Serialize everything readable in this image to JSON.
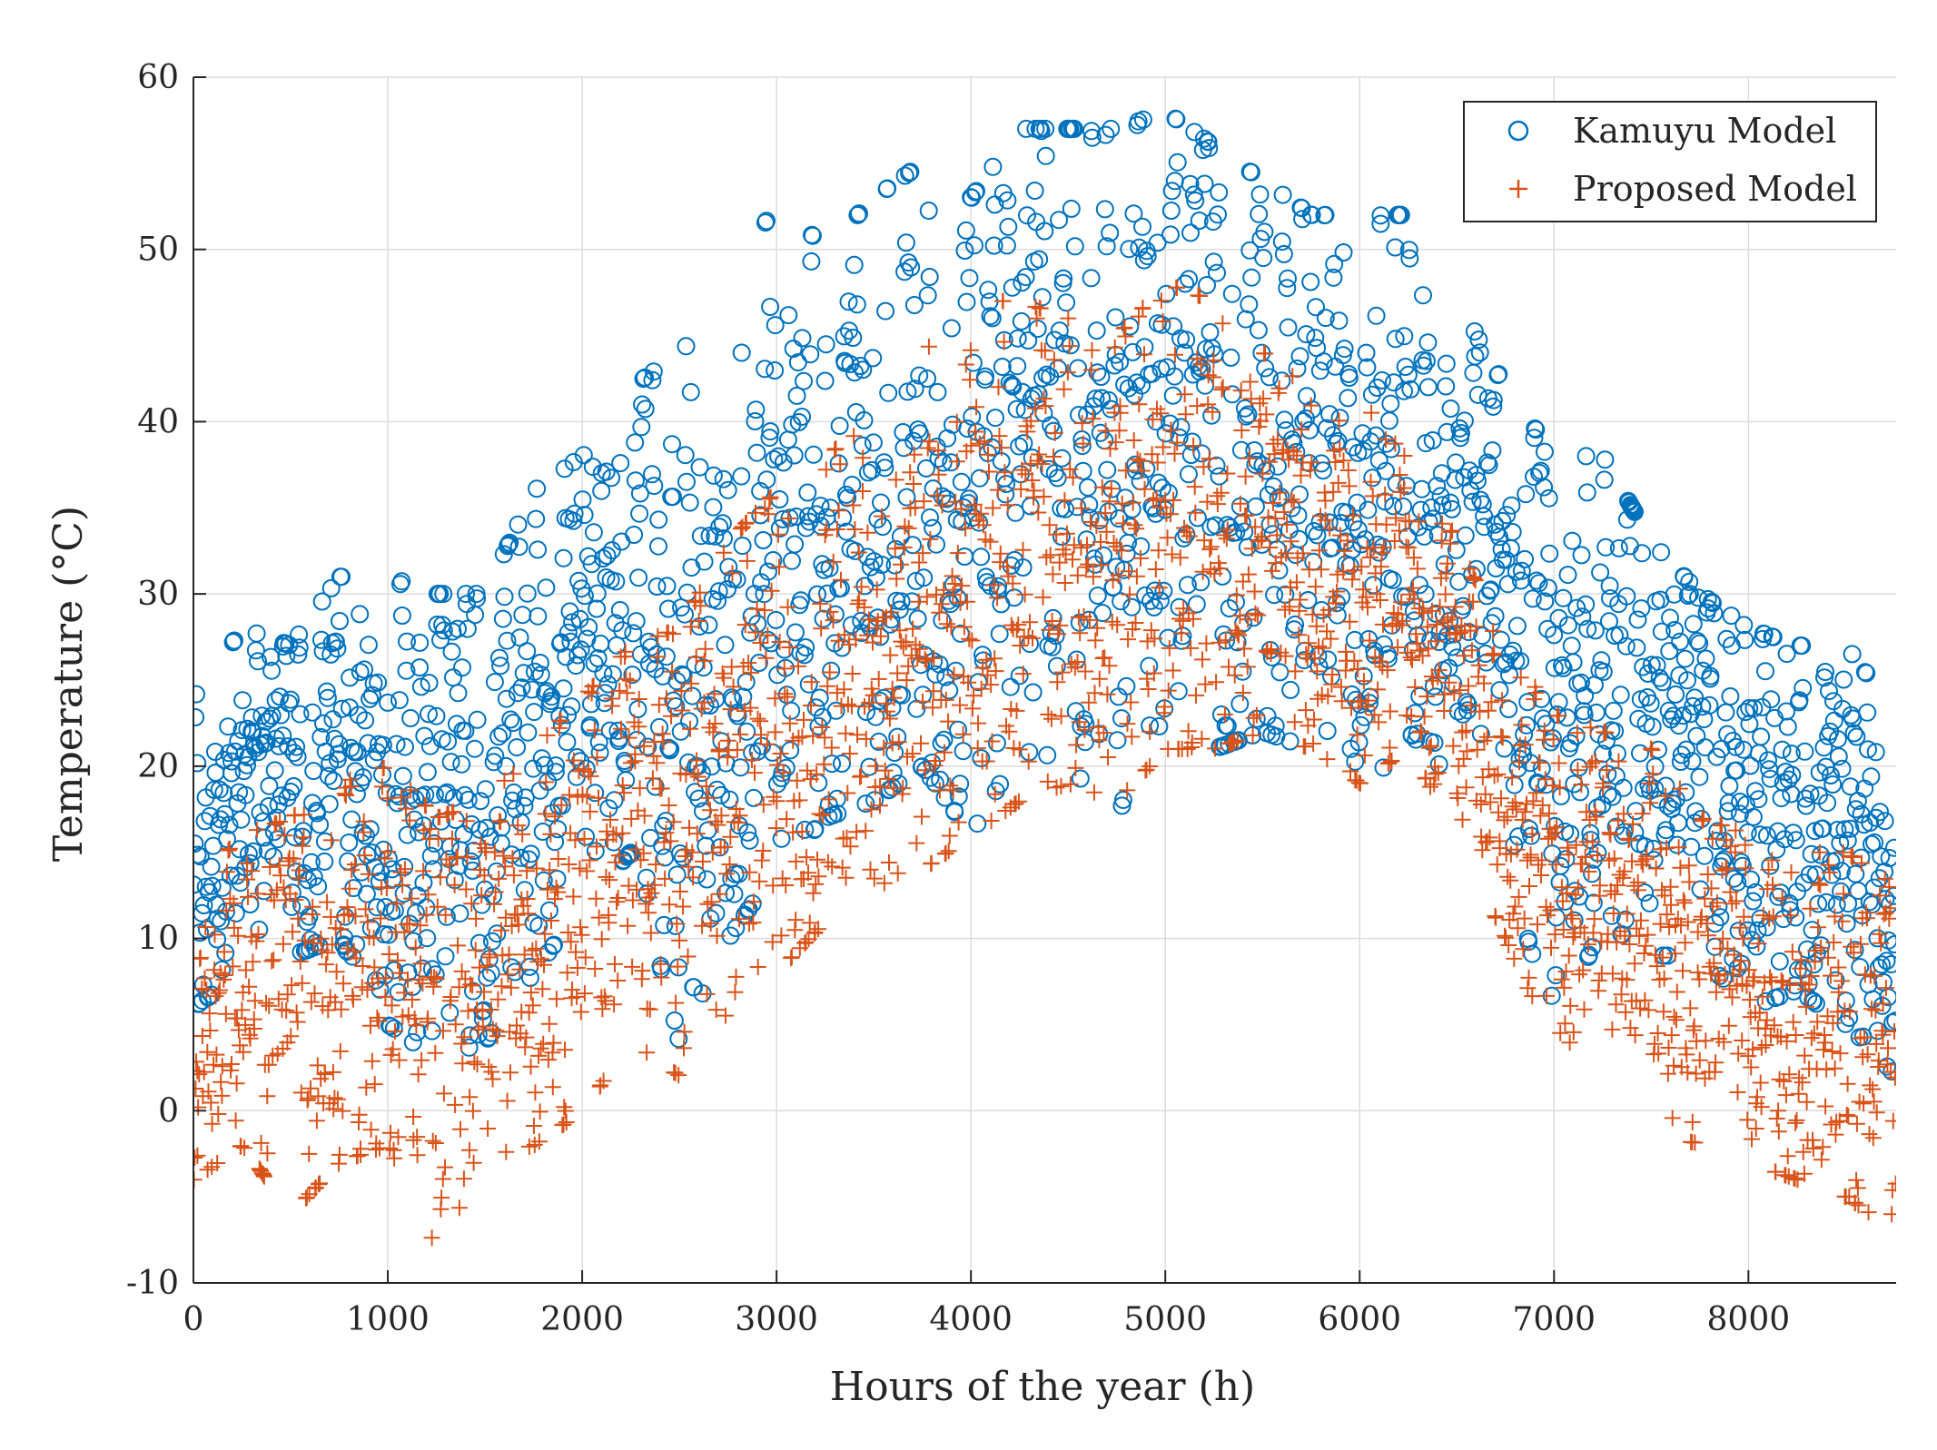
{
  "chart_data": {
    "type": "scatter",
    "title": "",
    "xlabel": "Hours of the year (h)",
    "ylabel": "Temperature (°C)",
    "xlim": [
      0,
      8760
    ],
    "ylim": [
      -10,
      60
    ],
    "xticks": [
      0,
      1000,
      2000,
      3000,
      4000,
      5000,
      6000,
      7000,
      8000
    ],
    "yticks": [
      -10,
      0,
      10,
      20,
      30,
      40,
      50,
      60
    ],
    "xtick_labels": [
      "0",
      "1000",
      "2000",
      "3000",
      "4000",
      "5000",
      "6000",
      "7000",
      "8000"
    ],
    "ytick_labels": [
      "-10",
      "0",
      "10",
      "20",
      "30",
      "40",
      "50",
      "60"
    ],
    "grid": true,
    "legend_position": "top-right",
    "series": [
      {
        "name": "Kamuyu Model",
        "marker": "circle",
        "color": "#0072BD",
        "envelope_x": [
          0,
          250,
          500,
          750,
          1000,
          1250,
          1500,
          1750,
          2000,
          2250,
          2500,
          2750,
          3000,
          3250,
          3500,
          3750,
          4000,
          4250,
          4500,
          4750,
          5000,
          5250,
          5500,
          5750,
          6000,
          6250,
          6500,
          6750,
          7000,
          7250,
          7500,
          7750,
          8000,
          8250,
          8500,
          8760
        ],
        "envelope_low": [
          6,
          8,
          9,
          10,
          5,
          3,
          4,
          8,
          12,
          15,
          4,
          10,
          14,
          17,
          18,
          20,
          16,
          21,
          20,
          17,
          20,
          21,
          22,
          21,
          18,
          22,
          19,
          15,
          4,
          11,
          9,
          9,
          6,
          7,
          5,
          2
        ],
        "envelope_high": [
          24,
          28,
          27,
          31,
          31,
          30,
          30,
          36,
          38,
          42,
          44,
          47,
          53,
          50,
          53,
          55,
          53,
          57,
          57,
          57,
          58,
          56,
          54,
          52,
          52,
          52,
          47,
          42,
          38,
          38,
          33,
          30,
          28,
          27,
          27,
          23
        ]
      },
      {
        "name": "Proposed Model",
        "marker": "plus",
        "color": "#D95319",
        "envelope_x": [
          0,
          250,
          500,
          750,
          1000,
          1250,
          1500,
          1750,
          2000,
          2250,
          2500,
          2750,
          3000,
          3250,
          3500,
          3750,
          4000,
          4250,
          4500,
          4750,
          5000,
          5250,
          5500,
          5750,
          6000,
          6250,
          6500,
          6750,
          7000,
          7250,
          7500,
          7750,
          8000,
          8250,
          8500,
          8760
        ],
        "envelope_low": [
          -4,
          -2,
          -6,
          -3,
          -2,
          -8,
          -3,
          -2,
          0,
          4,
          2,
          5,
          8,
          11,
          13,
          14,
          16,
          18,
          19,
          18,
          21,
          21,
          22,
          21,
          19,
          21,
          16,
          10,
          3,
          6,
          -1,
          -2,
          -3,
          -4,
          -5,
          -7
        ],
        "envelope_high": [
          13,
          16,
          17,
          19,
          20,
          17,
          18,
          21,
          24,
          27,
          28,
          33,
          36,
          38,
          40,
          44,
          47,
          47,
          46,
          45,
          48,
          47,
          44,
          43,
          41,
          39,
          33,
          27,
          23,
          22,
          21,
          17,
          16,
          15,
          15,
          13
        ]
      }
    ]
  }
}
